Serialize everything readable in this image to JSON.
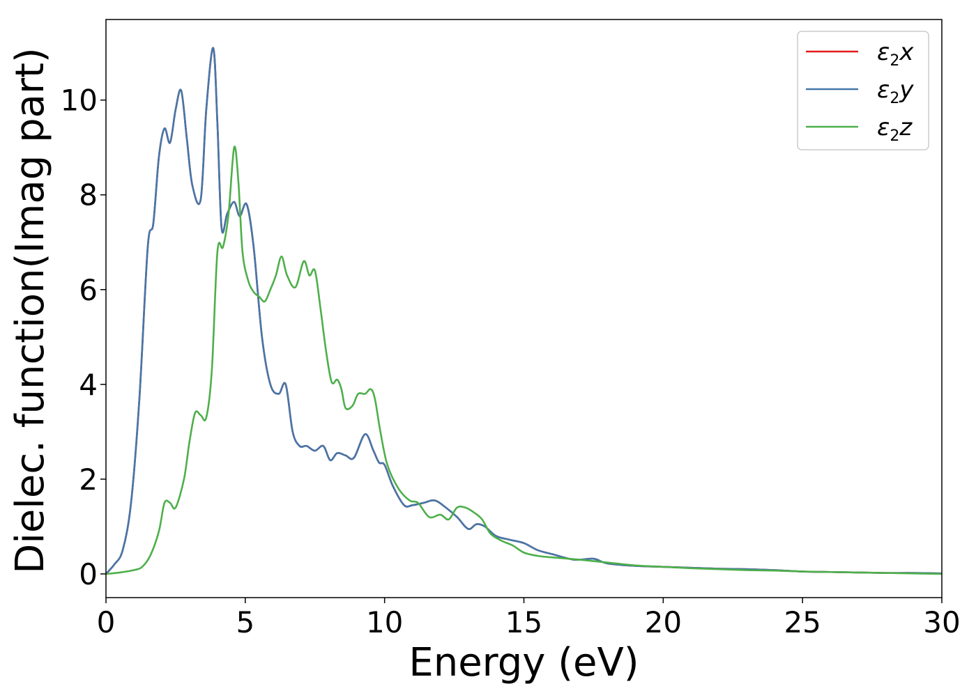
{
  "chart_data": {
    "type": "line",
    "title": "",
    "xlabel": "Energy (eV)",
    "ylabel": "Dielec. function(Imag part)",
    "xlim": [
      0,
      30
    ],
    "ylim": [
      -0.5,
      11.7
    ],
    "xticks": [
      0,
      5,
      10,
      15,
      20,
      25,
      30
    ],
    "yticks": [
      0,
      2,
      4,
      6,
      8,
      10
    ],
    "grid": false,
    "legend_position": "top-right",
    "series": [
      {
        "name": "ε2x",
        "legend": {
          "base": "ε",
          "sub": "2",
          "var": "x"
        },
        "color": "#e41a1c",
        "x": [
          0,
          0.3,
          0.6,
          0.9,
          1.2,
          1.5,
          1.7,
          1.9,
          2.1,
          2.3,
          2.5,
          2.7,
          2.9,
          3.1,
          3.4,
          3.6,
          3.85,
          4.0,
          4.15,
          4.35,
          4.6,
          4.8,
          5.05,
          5.3,
          5.6,
          5.9,
          6.2,
          6.45,
          6.7,
          6.95,
          7.2,
          7.5,
          7.8,
          8.05,
          8.3,
          8.6,
          8.9,
          9.3,
          9.6,
          9.8,
          10.0,
          10.3,
          10.7,
          11.0,
          11.4,
          11.8,
          12.2,
          12.6,
          13.0,
          13.3,
          13.6,
          14.0,
          14.5,
          15.0,
          15.5,
          16.0,
          16.8,
          17.5,
          18.0,
          19.0,
          20.0,
          21.0,
          22.0,
          23.0,
          24.0,
          25.0,
          26.0,
          27.0,
          28.0,
          29.0,
          30.0
        ],
        "y": [
          0,
          0.2,
          0.5,
          1.5,
          3.7,
          6.9,
          7.4,
          8.8,
          9.4,
          9.1,
          9.8,
          10.2,
          9.2,
          8.2,
          7.9,
          9.8,
          11.1,
          9.5,
          7.3,
          7.6,
          7.85,
          7.55,
          7.8,
          6.9,
          5.0,
          4.0,
          3.8,
          4.0,
          3.0,
          2.7,
          2.7,
          2.6,
          2.7,
          2.4,
          2.55,
          2.5,
          2.45,
          2.95,
          2.6,
          2.35,
          2.3,
          1.85,
          1.45,
          1.45,
          1.5,
          1.55,
          1.4,
          1.2,
          0.95,
          1.05,
          1.0,
          0.8,
          0.72,
          0.65,
          0.5,
          0.42,
          0.3,
          0.32,
          0.22,
          0.17,
          0.15,
          0.13,
          0.11,
          0.1,
          0.08,
          0.05,
          0.04,
          0.03,
          0.02,
          0.02,
          0.01
        ]
      },
      {
        "name": "ε2y",
        "legend": {
          "base": "ε",
          "sub": "2",
          "var": "y"
        },
        "color": "#4477aa",
        "x": [
          0,
          0.3,
          0.6,
          0.9,
          1.2,
          1.5,
          1.7,
          1.9,
          2.1,
          2.3,
          2.5,
          2.7,
          2.9,
          3.1,
          3.4,
          3.6,
          3.85,
          4.0,
          4.15,
          4.35,
          4.6,
          4.8,
          5.05,
          5.3,
          5.6,
          5.9,
          6.2,
          6.45,
          6.7,
          6.95,
          7.2,
          7.5,
          7.8,
          8.05,
          8.3,
          8.6,
          8.9,
          9.3,
          9.6,
          9.8,
          10.0,
          10.3,
          10.7,
          11.0,
          11.4,
          11.8,
          12.2,
          12.6,
          13.0,
          13.3,
          13.6,
          14.0,
          14.5,
          15.0,
          15.5,
          16.0,
          16.8,
          17.5,
          18.0,
          19.0,
          20.0,
          21.0,
          22.0,
          23.0,
          24.0,
          25.0,
          26.0,
          27.0,
          28.0,
          29.0,
          30.0
        ],
        "y": [
          0,
          0.2,
          0.5,
          1.5,
          3.7,
          6.9,
          7.4,
          8.8,
          9.4,
          9.1,
          9.8,
          10.2,
          9.2,
          8.2,
          7.9,
          9.8,
          11.1,
          9.5,
          7.3,
          7.6,
          7.85,
          7.55,
          7.8,
          6.9,
          5.0,
          4.0,
          3.8,
          4.0,
          3.0,
          2.7,
          2.7,
          2.6,
          2.7,
          2.4,
          2.55,
          2.5,
          2.45,
          2.95,
          2.6,
          2.35,
          2.3,
          1.85,
          1.45,
          1.45,
          1.5,
          1.55,
          1.4,
          1.2,
          0.95,
          1.05,
          1.0,
          0.8,
          0.72,
          0.65,
          0.5,
          0.42,
          0.3,
          0.32,
          0.22,
          0.17,
          0.15,
          0.13,
          0.11,
          0.1,
          0.08,
          0.05,
          0.04,
          0.03,
          0.02,
          0.02,
          0.01
        ]
      },
      {
        "name": "ε2z",
        "legend": {
          "base": "ε",
          "sub": "2",
          "var": "z"
        },
        "color": "#4daf4a",
        "x": [
          0,
          0.5,
          1.0,
          1.3,
          1.6,
          1.9,
          2.1,
          2.3,
          2.5,
          2.8,
          3.0,
          3.2,
          3.4,
          3.6,
          3.8,
          4.0,
          4.2,
          4.4,
          4.6,
          4.75,
          4.9,
          5.1,
          5.3,
          5.5,
          5.7,
          5.9,
          6.1,
          6.3,
          6.5,
          6.8,
          7.1,
          7.3,
          7.5,
          7.7,
          7.9,
          8.1,
          8.3,
          8.45,
          8.6,
          8.85,
          9.05,
          9.3,
          9.5,
          9.65,
          9.85,
          10.1,
          10.5,
          10.9,
          11.2,
          11.6,
          12.0,
          12.3,
          12.6,
          12.9,
          13.2,
          13.5,
          13.8,
          14.2,
          14.6,
          15.0,
          15.5,
          16.0,
          17.0,
          18.0,
          19.0,
          20.0,
          21.0,
          22.0,
          23.0,
          24.0,
          25.0,
          26.0,
          27.0,
          28.0,
          29.0,
          30.0
        ],
        "y": [
          0,
          0.03,
          0.08,
          0.15,
          0.4,
          0.9,
          1.5,
          1.5,
          1.4,
          2.0,
          2.8,
          3.4,
          3.35,
          3.3,
          4.3,
          6.8,
          6.9,
          7.6,
          9.0,
          8.3,
          6.8,
          6.2,
          5.95,
          5.85,
          5.75,
          6.0,
          6.3,
          6.7,
          6.3,
          6.05,
          6.6,
          6.3,
          6.4,
          5.6,
          4.7,
          4.05,
          4.1,
          3.9,
          3.5,
          3.55,
          3.8,
          3.8,
          3.9,
          3.7,
          3.0,
          2.3,
          1.8,
          1.55,
          1.5,
          1.2,
          1.25,
          1.15,
          1.4,
          1.4,
          1.3,
          1.15,
          0.85,
          0.7,
          0.6,
          0.45,
          0.38,
          0.35,
          0.3,
          0.24,
          0.18,
          0.15,
          0.12,
          0.1,
          0.08,
          0.07,
          0.05,
          0.04,
          0.03,
          0.02,
          0.01,
          0.0
        ]
      }
    ]
  }
}
